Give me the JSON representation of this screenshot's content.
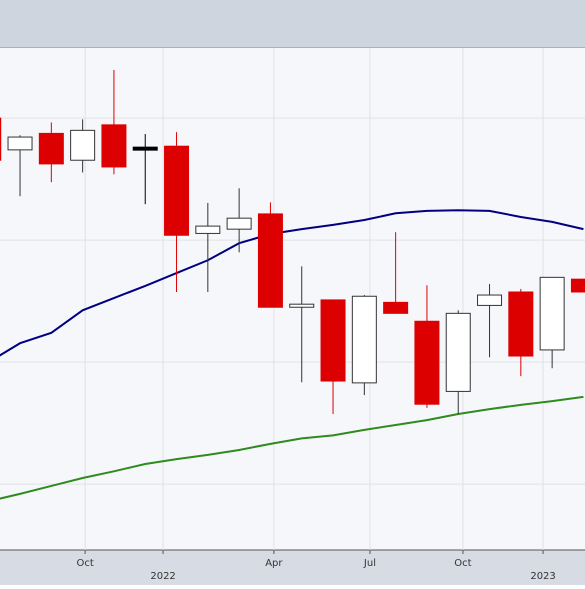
{
  "chart_data": {
    "type": "candlestick",
    "x": [
      -1,
      0,
      1,
      2,
      3,
      4,
      5,
      6,
      7,
      8,
      9,
      10,
      11,
      12,
      13,
      14,
      15,
      16,
      17,
      18
    ],
    "open": [
      80.0,
      74.8,
      77.5,
      73.1,
      78.9,
      75.0,
      75.4,
      61.1,
      61.8,
      64.3,
      49.0,
      50.2,
      36.6,
      49.8,
      46.7,
      35.2,
      49.3,
      51.5,
      42.0,
      53.6
    ],
    "high": [
      80.5,
      77.2,
      79.3,
      79.8,
      87.9,
      77.4,
      77.7,
      66.1,
      68.5,
      66.2,
      55.7,
      50.2,
      51.0,
      61.3,
      52.6,
      48.5,
      52.8,
      52.0,
      53.9,
      53.6
    ],
    "low": [
      72.8,
      67.2,
      69.5,
      71.1,
      70.8,
      65.9,
      51.5,
      51.5,
      58.0,
      49.0,
      36.7,
      31.5,
      34.6,
      48.0,
      32.5,
      31.5,
      40.8,
      37.7,
      39.0,
      51.5
    ],
    "close": [
      73.1,
      76.9,
      72.5,
      78.0,
      72.0,
      75.0,
      60.8,
      62.3,
      63.6,
      49.0,
      49.5,
      36.9,
      50.8,
      48.0,
      33.1,
      48.0,
      51.0,
      41.0,
      53.9,
      51.5
    ],
    "up_color": "#ffffff",
    "down_color": "#dd0000",
    "flat_color": "#000000",
    "lines": [
      {
        "color": "#000080",
        "values": [
          40.0,
          43.1,
          44.8,
          48.5,
          50.5,
          52.5,
          54.6,
          56.7,
          59.5,
          61.0,
          61.8,
          62.5,
          63.3,
          64.4,
          64.8,
          64.9,
          64.8,
          63.8,
          63.0,
          61.8
        ]
      },
      {
        "color": "#2e8b1e",
        "values": [
          17.2,
          18.4,
          19.7,
          21.0,
          22.1,
          23.3,
          24.1,
          24.8,
          25.6,
          26.6,
          27.5,
          28.0,
          28.9,
          29.7,
          30.5,
          31.5,
          32.3,
          33.0,
          33.6,
          34.3
        ]
      }
    ],
    "xlim": [
      -0.64,
      18.05
    ],
    "ylim": [
      9.2,
      91.5
    ],
    "xticks": [
      {
        "value": 2.08,
        "label": "Oct"
      },
      {
        "value": 4.57,
        "label": "2022"
      },
      {
        "value": 8.11,
        "label": "Apr"
      },
      {
        "value": 11.18,
        "label": "Jul"
      },
      {
        "value": 14.15,
        "label": "Oct"
      },
      {
        "value": 16.71,
        "label": "2023"
      }
    ],
    "gridlines_y": [
      20,
      40,
      60,
      80
    ],
    "grid": true
  }
}
